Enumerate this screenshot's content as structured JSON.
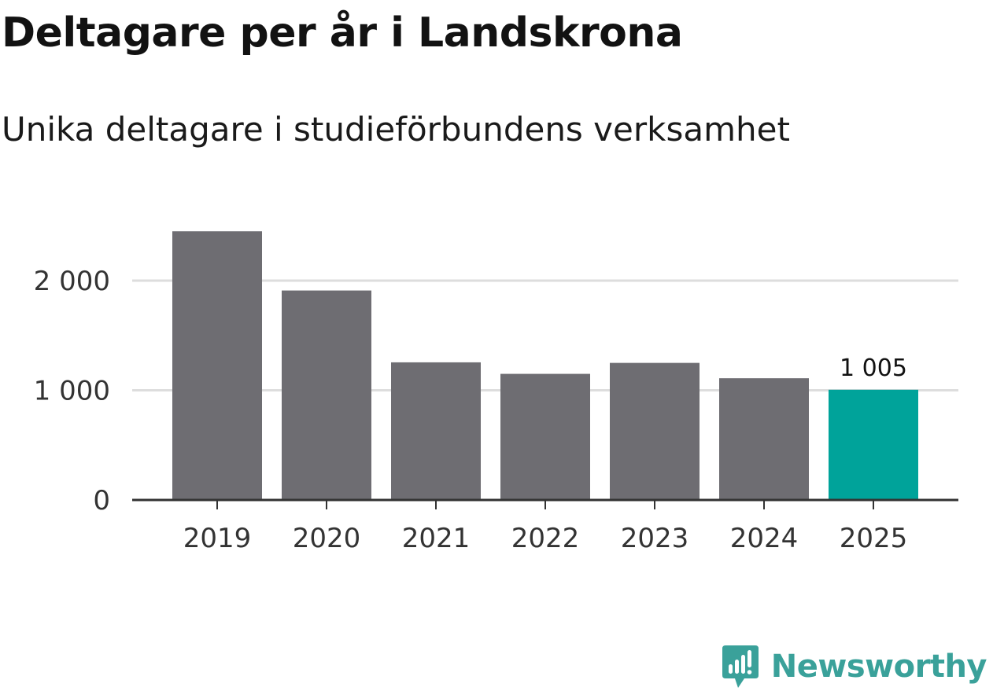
{
  "header": {
    "title": "Deltagare per år i Landskrona",
    "subtitle": "Unika deltagare i studieförbundens verksamhet"
  },
  "brand": {
    "name": "Newsworthy",
    "icon": "newsworthy-logo-icon",
    "color": "#3aa19a"
  },
  "chart_data": {
    "type": "bar",
    "title": "Deltagare per år i Landskrona",
    "subtitle": "Unika deltagare i studieförbundens verksamhet",
    "categories": [
      "2019",
      "2020",
      "2021",
      "2022",
      "2023",
      "2024",
      "2025"
    ],
    "values": [
      2450,
      1910,
      1255,
      1150,
      1250,
      1110,
      1005
    ],
    "xlabel": "",
    "ylabel": "",
    "ylim": [
      0,
      2600
    ],
    "yticks": [
      0,
      1000,
      2000
    ],
    "ytick_labels": [
      "0",
      "1 000",
      "2 000"
    ],
    "grid": true,
    "highlight_index": 6,
    "highlight_label": "1 005",
    "colors": {
      "bar": "#6e6d72",
      "highlight": "#00a39a",
      "grid": "#dddddd",
      "axis": "#333333",
      "tick_text": "#333333"
    }
  }
}
